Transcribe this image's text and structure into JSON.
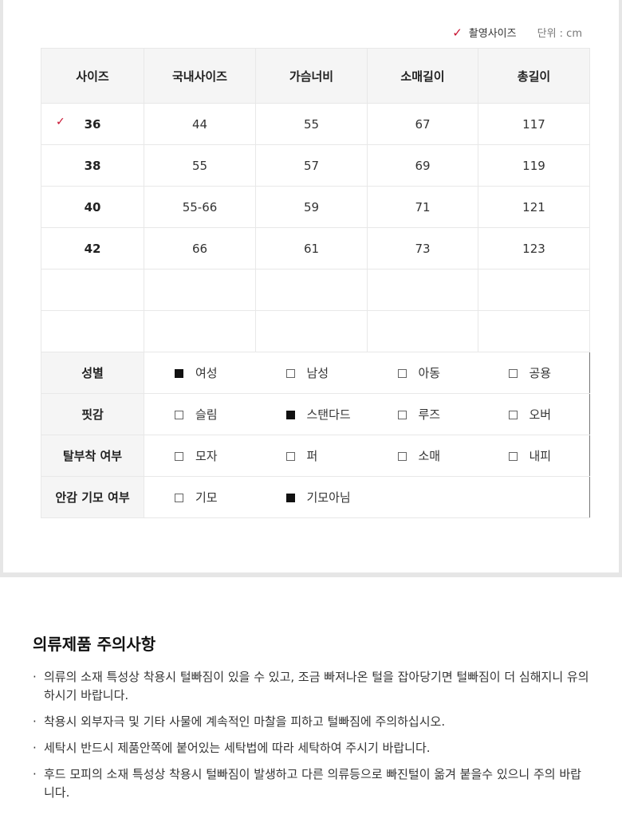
{
  "legend": {
    "photo_size_label": "촬영사이즈",
    "unit": "단위 : cm",
    "accent": "#c8102e"
  },
  "table": {
    "headers": [
      "사이즈",
      "국내사이즈",
      "가슴너비",
      "소매길이",
      "총길이"
    ],
    "rows": [
      {
        "size": "36",
        "domestic": "44",
        "chest": "55",
        "sleeve": "67",
        "length": "117",
        "photo": true
      },
      {
        "size": "38",
        "domestic": "55",
        "chest": "57",
        "sleeve": "69",
        "length": "119"
      },
      {
        "size": "40",
        "domestic": "55-66",
        "chest": "59",
        "sleeve": "71",
        "length": "121"
      },
      {
        "size": "42",
        "domestic": "66",
        "chest": "61",
        "sleeve": "73",
        "length": "123"
      }
    ],
    "attributes": [
      {
        "label": "성별",
        "options": [
          {
            "t": "여성",
            "on": true
          },
          {
            "t": "남성",
            "on": false
          },
          {
            "t": "아동",
            "on": false
          },
          {
            "t": "공용",
            "on": false
          }
        ]
      },
      {
        "label": "핏감",
        "options": [
          {
            "t": "슬림",
            "on": false
          },
          {
            "t": "스탠다드",
            "on": true
          },
          {
            "t": "루즈",
            "on": false
          },
          {
            "t": "오버",
            "on": false
          }
        ]
      },
      {
        "label": "탈부착 여부",
        "options": [
          {
            "t": "모자",
            "on": false
          },
          {
            "t": "퍼",
            "on": false
          },
          {
            "t": "소매",
            "on": false
          },
          {
            "t": "내피",
            "on": false
          }
        ]
      },
      {
        "label": "안감 기모 여부",
        "options": [
          {
            "t": "기모",
            "on": false
          },
          {
            "t": "기모아님",
            "on": true
          }
        ]
      }
    ]
  },
  "notice": {
    "title": "의류제품 주의사항",
    "items": [
      "의류의 소재 특성상 착용시 털빠짐이 있을 수 있고, 조금 빠져나온 털을 잡아당기면 털빠짐이 더 심해지니 유의하시기 바랍니다.",
      "착용시 외부자극 및 기타 사물에 계속적인 마찰을 피하고 털빠짐에 주의하십시오.",
      "세탁시 반드시 제품안쪽에 붙어있는 세탁법에 따라 세탁하여 주시기 바랍니다.",
      "후드 모피의 소재 특성상 착용시 털빠짐이 발생하고 다른 의류등으로 빠진털이 옮겨 붙을수 있으니 주의 바랍니다."
    ]
  }
}
